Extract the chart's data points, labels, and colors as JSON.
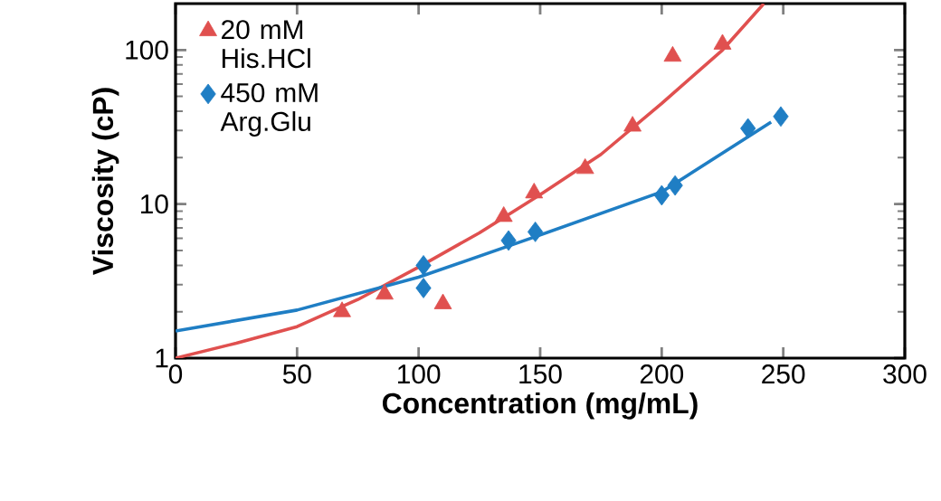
{
  "chart_data": {
    "type": "scatter",
    "xlabel": "Concentration (mg/mL)",
    "ylabel": "Viscosity (cP)",
    "log": "y",
    "xlim": [
      0,
      300
    ],
    "ylim": [
      1,
      200
    ],
    "xticks": [
      0,
      50,
      100,
      150,
      200,
      250,
      300
    ],
    "yticks": [
      1,
      10,
      100
    ],
    "grid": false,
    "legend": "top left",
    "series": [
      {
        "name": "20 mM His.HCl",
        "color": "#e0504f",
        "marker": "triangle",
        "x": [
          68.5,
          86,
          110,
          135,
          147.5,
          168.5,
          188,
          204.5,
          225
        ],
        "values": [
          2.0,
          2.6,
          2.25,
          8.3,
          11.8,
          17,
          32,
          91,
          109
        ]
      },
      {
        "name": "450 mM Arg.Glu",
        "color": "#1f7ec4",
        "marker": "diamond",
        "x": [
          102,
          102,
          137,
          148,
          200,
          205.5,
          235.5,
          249
        ],
        "values": [
          4.0,
          2.85,
          5.8,
          6.6,
          11.4,
          13.2,
          31,
          37
        ]
      },
      {
        "type": "line",
        "color": "#e0504f",
        "marker": "none",
        "x": [
          0,
          25,
          50,
          75,
          100,
          125,
          150,
          175,
          200,
          225,
          242
        ],
        "values": [
          1,
          1.25,
          1.6,
          2.4,
          3.9,
          6.5,
          11.5,
          21,
          45,
          100,
          200
        ]
      },
      {
        "type": "line",
        "color": "#1f7ec4",
        "marker": "none",
        "x": [
          0,
          50,
          100,
          150,
          200,
          245
        ],
        "values": [
          1.5,
          2.05,
          3.35,
          6.3,
          12,
          34
        ]
      }
    ]
  }
}
